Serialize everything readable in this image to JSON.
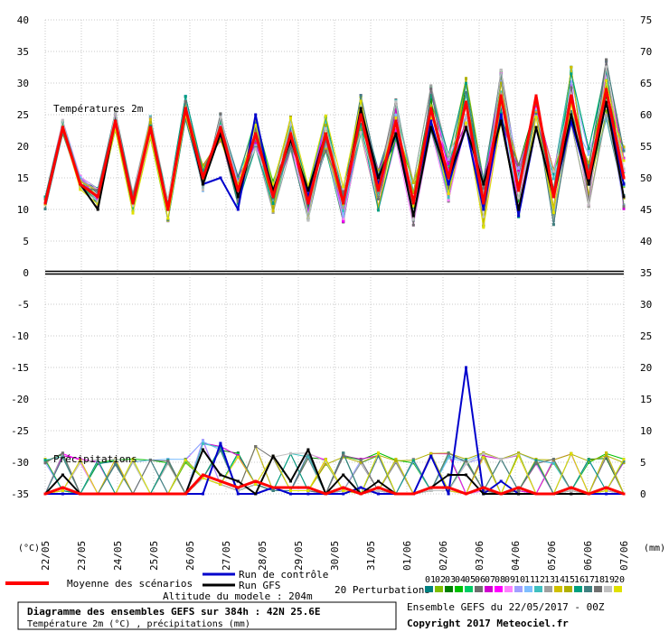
{
  "chart_data": {
    "type": "line",
    "title": "Diagramme des ensembles GEFS sur 384h : 42N 25.6E",
    "subtitle": "Température 2m (°C) , précipitations (mm)",
    "panel_temp_label": "Températures 2m",
    "panel_precip_label": "Précipitations",
    "left_unit": "(°C)",
    "right_unit": "(mm)",
    "left_ticks": [
      40,
      35,
      30,
      25,
      20,
      15,
      10,
      5,
      0,
      -5,
      -10,
      -15,
      -20,
      -25,
      -30,
      -35
    ],
    "right_ticks": [
      75,
      70,
      65,
      60,
      55,
      50,
      45,
      40,
      35,
      30,
      25,
      20,
      15,
      10,
      5,
      0
    ],
    "x_categories": [
      "22/05",
      "23/05",
      "24/05",
      "25/05",
      "26/05",
      "27/05",
      "28/05",
      "29/05",
      "30/05",
      "31/05",
      "01/06",
      "02/06",
      "03/06",
      "04/06",
      "05/06",
      "06/06",
      "07/06"
    ],
    "temperature_ylim": [
      0,
      40
    ],
    "precip_ylim_mm": [
      0,
      25
    ],
    "series": [
      {
        "name": "Moyenne des scénarios",
        "color": "#ff0000",
        "temp": [
          11,
          23,
          14,
          12,
          24,
          11,
          23,
          10,
          26,
          15,
          23,
          13,
          22,
          12,
          22,
          11,
          22,
          11,
          25,
          13,
          24,
          11,
          26,
          15,
          27,
          11,
          28,
          13,
          28,
          12,
          28,
          15,
          29,
          15
        ],
        "precip": [
          0,
          1,
          0,
          0,
          0,
          0,
          0,
          0,
          0,
          3,
          2,
          1,
          2,
          1,
          1,
          1,
          0,
          1,
          0,
          1,
          0,
          0,
          1,
          1,
          0,
          1,
          0,
          1,
          0,
          0,
          1,
          0,
          1,
          0
        ]
      },
      {
        "name": "Run de contrôle",
        "color": "#0000cc",
        "temp": [
          11,
          23,
          14,
          12,
          24,
          11,
          23,
          10,
          26,
          14,
          15,
          10,
          25,
          12,
          22,
          12,
          22,
          11,
          26,
          14,
          22,
          11,
          24,
          14,
          23,
          10,
          25,
          9,
          23,
          12,
          24,
          14,
          27,
          14
        ],
        "precip": [
          0,
          0,
          0,
          0,
          0,
          0,
          0,
          0,
          0,
          0,
          8,
          0,
          0,
          1,
          0,
          0,
          0,
          0,
          1,
          0,
          0,
          0,
          6,
          0,
          20,
          0,
          2,
          0,
          0,
          0,
          0,
          0,
          0,
          0
        ]
      },
      {
        "name": "Run GFS",
        "color": "#000000",
        "temp": [
          11,
          23,
          14,
          10,
          24,
          11,
          23,
          10,
          26,
          14,
          22,
          12,
          22,
          13,
          21,
          13,
          22,
          11,
          26,
          15,
          22,
          9,
          23,
          15,
          23,
          14,
          24,
          10,
          23,
          12,
          25,
          14,
          27,
          12
        ],
        "precip": [
          0,
          3,
          0,
          0,
          0,
          0,
          0,
          0,
          0,
          7,
          3,
          2,
          0,
          6,
          2,
          7,
          0,
          3,
          0,
          2,
          0,
          0,
          1,
          3,
          3,
          0,
          0,
          0,
          0,
          0,
          0,
          0,
          1,
          0
        ]
      }
    ],
    "legend": {
      "mean_label": "Moyenne des scénarios",
      "control_label": "Run de contrôle",
      "gfs_label": "Run GFS",
      "perturb_label": "20 Perturbations",
      "perturb_numbers": [
        "01",
        "02",
        "03",
        "04",
        "05",
        "06",
        "07",
        "08",
        "09",
        "10",
        "11",
        "12",
        "13",
        "14",
        "15",
        "16",
        "17",
        "18",
        "19",
        "20"
      ],
      "perturb_colors": [
        "#008080",
        "#7fbf00",
        "#008000",
        "#00c000",
        "#00cc66",
        "#6f6f6f",
        "#d000d0",
        "#ff00ff",
        "#ff80ff",
        "#a0a0ff",
        "#7fbfff",
        "#40c0c0",
        "#a0a0a0",
        "#d0c000",
        "#b0b000",
        "#00a080",
        "#408080",
        "#707070",
        "#c0c0c0",
        "#e0e000"
      ]
    },
    "altitude_text": "Altitude du modele : 204m",
    "ensemble_text": "Ensemble GEFS du 22/05/2017 - 00Z",
    "copyright_text": "Copyright 2017 Meteociel.fr"
  }
}
